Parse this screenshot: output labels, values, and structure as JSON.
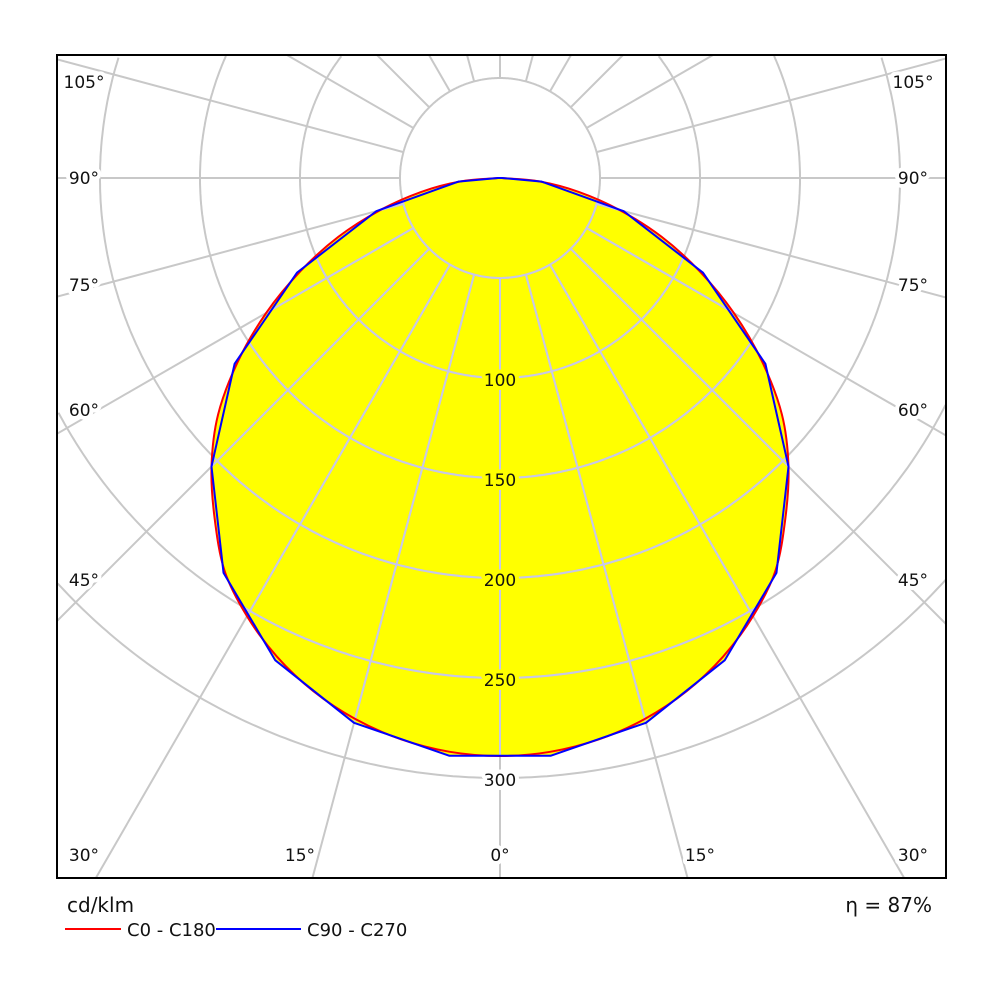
{
  "chart_data": {
    "type": "polar-line",
    "unit_label": "cd/klm",
    "efficiency_label": "η = 87%",
    "radial_ticks": [
      50,
      100,
      150,
      200,
      250,
      300
    ],
    "radial_tick_labels": [
      "100",
      "150",
      "200",
      "250",
      "300"
    ],
    "rlim": [
      0,
      300
    ],
    "angle_ticks_deg": [
      0,
      15,
      30,
      45,
      60,
      75,
      90,
      105,
      120,
      135,
      150,
      165,
      180
    ],
    "angle_labels_left": [
      "105°",
      "90°",
      "75°",
      "60°",
      "45°",
      "30°"
    ],
    "angle_labels_bottom": [
      "30°",
      "15°",
      "0°",
      "15°",
      "30°"
    ],
    "angle_labels_right": [
      "105°",
      "90°",
      "75°",
      "60°",
      "45°",
      "30°"
    ],
    "grid": true,
    "legend_position": "bottom-left",
    "fill_color": "#ffff00",
    "series": [
      {
        "name": "C0 - C180",
        "color": "#ff0000",
        "angles_deg": [
          0,
          5,
          10,
          15,
          20,
          25,
          30,
          35,
          40,
          45,
          50,
          55,
          60,
          65,
          70,
          75,
          80,
          85,
          90
        ],
        "values": [
          289,
          288,
          285,
          280,
          273,
          264,
          253,
          240,
          222,
          204,
          184,
          160,
          135,
          110,
          86,
          62,
          40,
          20,
          1
        ]
      },
      {
        "name": "C90 - C270",
        "color": "#0000ff",
        "angles_deg": [
          5,
          15,
          25,
          35,
          45,
          55,
          65,
          75,
          85,
          90
        ],
        "values": [
          290,
          282,
          266,
          241,
          204,
          162,
          112,
          64,
          21,
          1
        ]
      }
    ]
  }
}
